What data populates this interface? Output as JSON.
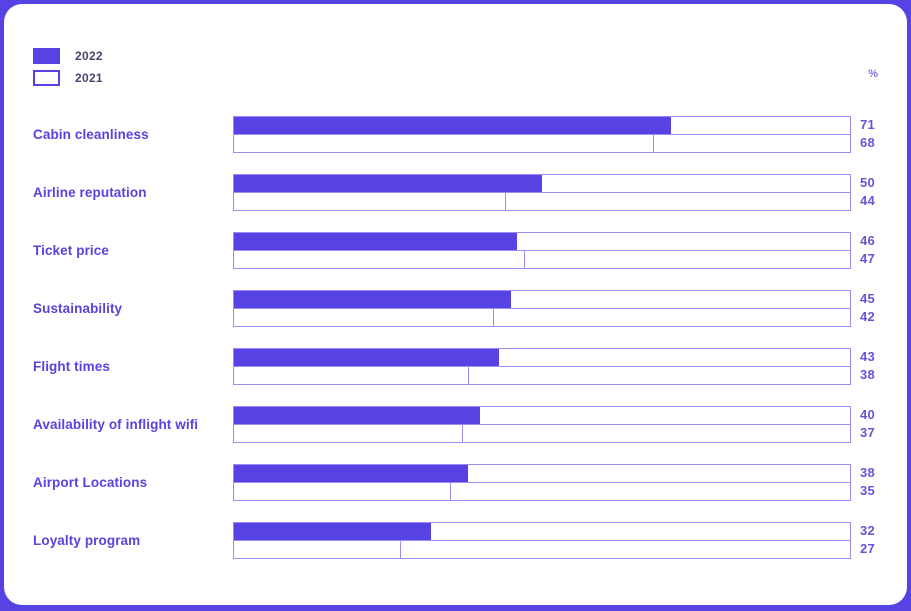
{
  "colors": {
    "accent": "#5742e3",
    "track_border": "#9d8cf1",
    "category_text": "#5d41dd",
    "value_text": "#6a52d6",
    "legend_text": "#4a446e",
    "unit_text": "#8170e6",
    "card_bg": "#ffffff"
  },
  "legend": {
    "items": [
      {
        "label": "2022",
        "style": "filled"
      },
      {
        "label": "2021",
        "style": "outlined"
      }
    ]
  },
  "unit_label": "%",
  "chart_data": {
    "type": "bar",
    "orientation": "horizontal",
    "title": "",
    "categories": [
      "Cabin cleanliness",
      "Airline reputation",
      "Ticket price",
      "Sustainability",
      "Flight times",
      "Availability of inflight wifi",
      "Airport Locations",
      "Loyalty program"
    ],
    "series": [
      {
        "name": "2022",
        "values": [
          71,
          50,
          46,
          45,
          43,
          40,
          38,
          32
        ]
      },
      {
        "name": "2021",
        "values": [
          68,
          44,
          47,
          42,
          38,
          37,
          35,
          27
        ]
      }
    ],
    "xlim": [
      0,
      100
    ],
    "unit": "%",
    "grid": false,
    "legend_position": "top-left"
  }
}
